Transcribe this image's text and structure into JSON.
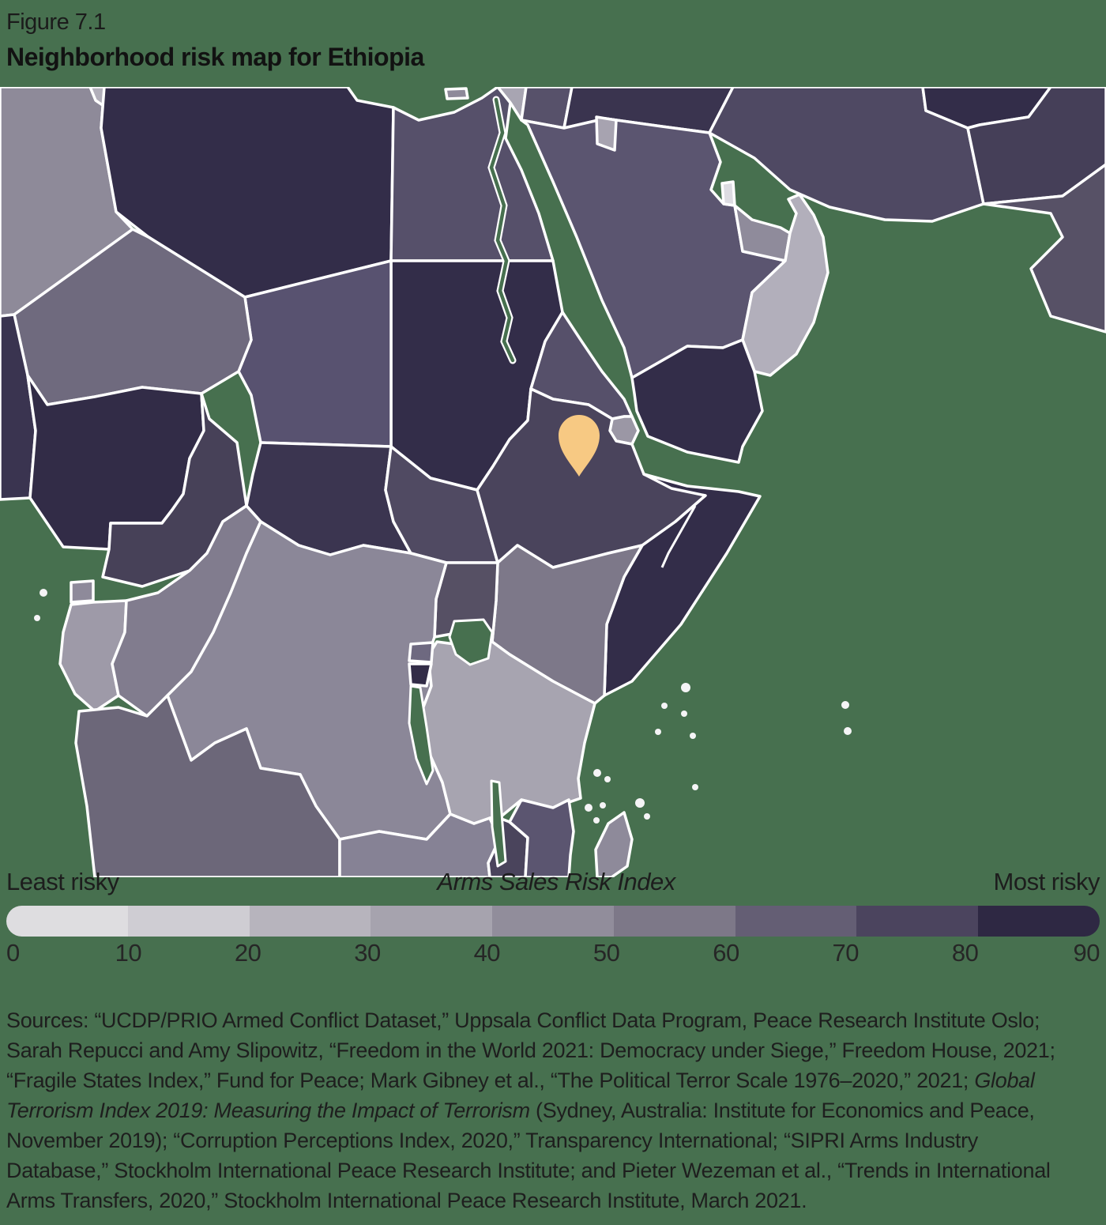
{
  "figure": {
    "label": "Figure 7.1",
    "title": "Neighborhood risk map for Ethiopia"
  },
  "map": {
    "sea_color": "#47704f",
    "border_color": "#ffffff",
    "island_color": "#f5f4f6",
    "pin": {
      "country": "Ethiopia",
      "color": "#f7c983"
    },
    "countries": [
      {
        "id": "algeria",
        "color": "#8e8a99"
      },
      {
        "id": "tunisia",
        "color": "#b2afba"
      },
      {
        "id": "libya",
        "color": "#332d49"
      },
      {
        "id": "egypt",
        "color": "#56506a"
      },
      {
        "id": "israel",
        "color": "#a8a5b2"
      },
      {
        "id": "jordan",
        "color": "#57516a"
      },
      {
        "id": "iraq",
        "color": "#3a344f"
      },
      {
        "id": "iran",
        "color": "#4f4963"
      },
      {
        "id": "turkmenistan",
        "color": "#332d49"
      },
      {
        "id": "afghanistan",
        "color": "#453f58"
      },
      {
        "id": "pakistan",
        "color": "#575166"
      },
      {
        "id": "saudi_arabia",
        "color": "#5b5570"
      },
      {
        "id": "kuwait",
        "color": "#a7a3b0"
      },
      {
        "id": "qatar",
        "color": "#dddce2"
      },
      {
        "id": "uae",
        "color": "#8f8b9b"
      },
      {
        "id": "oman",
        "color": "#b2afbb"
      },
      {
        "id": "yemen",
        "color": "#332d49"
      },
      {
        "id": "sudan",
        "color": "#332d49"
      },
      {
        "id": "chad",
        "color": "#585270"
      },
      {
        "id": "niger",
        "color": "#6f6a7e"
      },
      {
        "id": "benin",
        "color": "#3a3450"
      },
      {
        "id": "nigeria",
        "color": "#322c47"
      },
      {
        "id": "cameroon",
        "color": "#474158"
      },
      {
        "id": "central_african_republic",
        "color": "#3b3550"
      },
      {
        "id": "south_sudan",
        "color": "#504a62"
      },
      {
        "id": "eritrea",
        "color": "#56506a"
      },
      {
        "id": "djibouti",
        "color": "#9b97a5"
      },
      {
        "id": "ethiopia",
        "color": "#4a445c"
      },
      {
        "id": "somalia",
        "color": "#332d49"
      },
      {
        "id": "kenya",
        "color": "#7d7889"
      },
      {
        "id": "uganda",
        "color": "#565064"
      },
      {
        "id": "equatorial_guinea",
        "color": "#8e8a9a"
      },
      {
        "id": "gabon",
        "color": "#9e9aa8"
      },
      {
        "id": "congo",
        "color": "#817c8e"
      },
      {
        "id": "drc",
        "color": "#8b8798"
      },
      {
        "id": "angola",
        "color": "#6c6779"
      },
      {
        "id": "zambia",
        "color": "#868295"
      },
      {
        "id": "tanzania",
        "color": "#a7a4b0"
      },
      {
        "id": "rwanda",
        "color": "#6e6980"
      },
      {
        "id": "burundi",
        "color": "#322c47"
      },
      {
        "id": "malawi",
        "color": "#4a445c"
      },
      {
        "id": "mozambique",
        "color": "#5b5570"
      },
      {
        "id": "madagascar",
        "color": "#8e8a9a"
      },
      {
        "id": "cyprus",
        "color": "#8e8a9a"
      }
    ]
  },
  "legend": {
    "left_label": "Least risky",
    "title": "Arms Sales Risk Index",
    "right_label": "Most risky",
    "ticks": [
      "0",
      "10",
      "20",
      "30",
      "40",
      "50",
      "60",
      "70",
      "80",
      "90"
    ],
    "segment_colors": [
      "#dedde0",
      "#cfcdd3",
      "#b7b4bd",
      "#a6a3ae",
      "#918d9b",
      "#7d7888",
      "#645e74",
      "#4b445e",
      "#2e2843"
    ]
  },
  "sources": {
    "lines": [
      [
        {
          "t": "Sources: “UCDP/PRIO Armed Conflict Dataset,” Uppsala Conflict Data Program, Peace Research Institute Oslo;"
        }
      ],
      [
        {
          "t": "Sarah Repucci and Amy Slipowitz, “Freedom in the World 2021: Democracy under Siege,” Freedom House, 2021;"
        }
      ],
      [
        {
          "t": "“Fragile States Index,” Fund for Peace; Mark Gibney et al., “The Political Terror Scale 1976–2020,” 2021; "
        },
        {
          "t": "Global",
          "i": true
        }
      ],
      [
        {
          "t": "Terrorism Index 2019: Measuring the Impact of Terrorism",
          "i": true
        },
        {
          "t": " (Sydney, Australia: Institute for Economics and Peace,"
        }
      ],
      [
        {
          "t": "November 2019); “Corruption Perceptions Index, 2020,” Transparency International; “SIPRI Arms Industry"
        }
      ],
      [
        {
          "t": "Database,” Stockholm International Peace Research Institute; and Pieter Wezeman et al., “Trends in International"
        }
      ],
      [
        {
          "t": "Arms Transfers, 2020,” Stockholm International Peace Research Institute, March 2021."
        }
      ]
    ]
  }
}
